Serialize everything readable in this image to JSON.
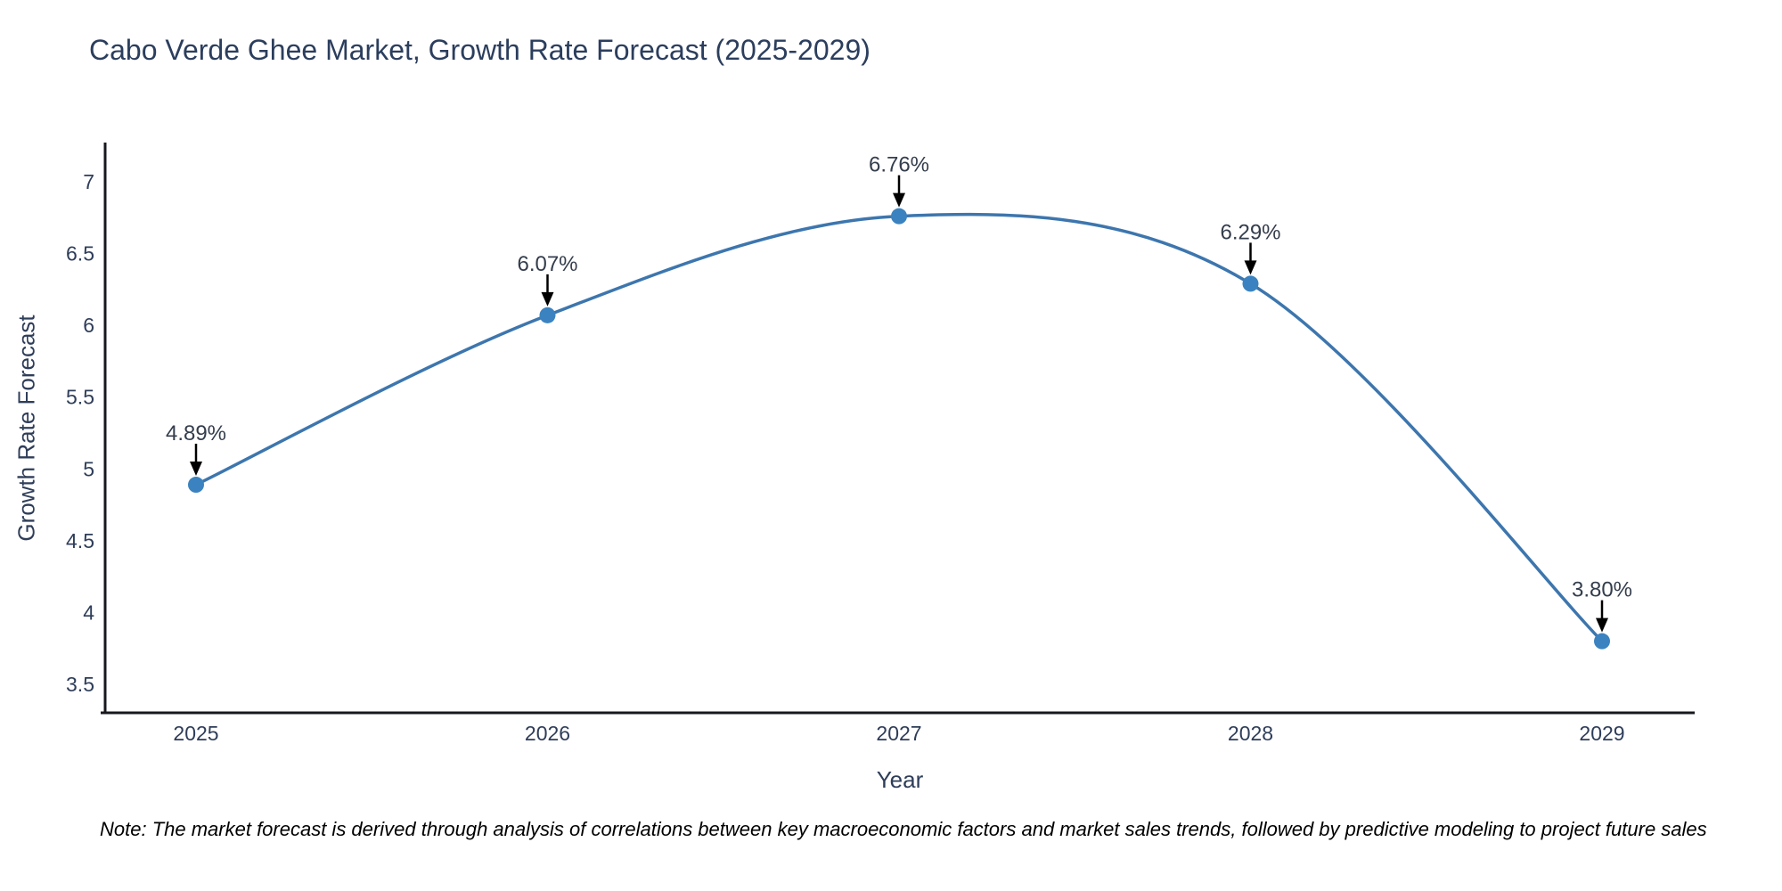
{
  "page": {
    "title": "Cabo Verde Ghee Market, Growth Rate Forecast (2025-2029)",
    "note": "Note: The market forecast is derived through analysis of correlations between key macroeconomic factors and market sales trends, followed by predictive modeling to project future sales"
  },
  "chart_data": {
    "type": "line",
    "title": "Cabo Verde Ghee Market, Growth Rate Forecast (2025-2029)",
    "xlabel": "Year",
    "ylabel": "Growth Rate Forecast",
    "categories": [
      "2025",
      "2026",
      "2027",
      "2028",
      "2029"
    ],
    "values": [
      4.89,
      6.07,
      6.76,
      6.29,
      3.8
    ],
    "point_labels": [
      "4.89%",
      "6.07%",
      "6.76%",
      "6.29%",
      "3.80%"
    ],
    "yticks": [
      3.5,
      4,
      4.5,
      5,
      5.5,
      6,
      6.5,
      7
    ],
    "ytick_labels": [
      "3.5",
      "4",
      "4.5",
      "5",
      "5.5",
      "6",
      "6.5",
      "7"
    ],
    "ylim": [
      3.3,
      7.29
    ],
    "grid": false,
    "legend": "none",
    "marker": "circle",
    "smooth": true,
    "annotation_arrows": true,
    "colors": {
      "line": "#3d76ae",
      "marker": "#3b83c0",
      "axis": "#16181d",
      "tick_text": "#2e3d59",
      "annotation_text": "#343d4c",
      "arrow": "#000000",
      "title_text": "#2c3e5d",
      "background": "#ffffff"
    }
  }
}
